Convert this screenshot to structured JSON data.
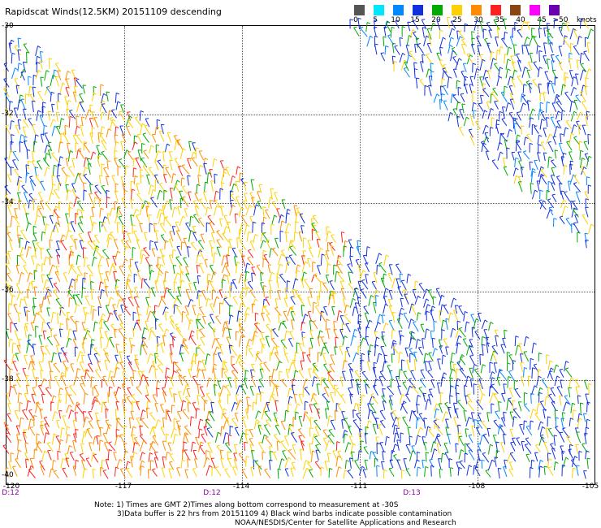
{
  "title": "Rapidscat Winds(12.5KM) 20151109 descending",
  "legend": {
    "unit": "knots",
    "entries": [
      {
        "label": "0",
        "color": "#555555"
      },
      {
        "label": "5",
        "color": "#00e6ff"
      },
      {
        "label": "10",
        "color": "#0088ff"
      },
      {
        "label": "15",
        "color": "#1030e0"
      },
      {
        "label": "20",
        "color": "#00aa00"
      },
      {
        "label": "25",
        "color": "#ffd000"
      },
      {
        "label": "30",
        "color": "#ff8c00"
      },
      {
        "label": "35",
        "color": "#ff2020"
      },
      {
        "label": "40",
        "color": "#8b4513"
      },
      {
        "label": "45",
        "color": "#ff00ff"
      },
      {
        "label": ">50",
        "color": "#6a00b0"
      }
    ]
  },
  "lat_labels": [
    "-30",
    "-32",
    "-34",
    "-36",
    "-38",
    "-40"
  ],
  "lon_labels": [
    "-120",
    "-117",
    "-114",
    "-111",
    "-108",
    "-105"
  ],
  "time_labels": [
    "D:12",
    "D:12",
    "D:13"
  ],
  "notes": {
    "line1": "Note: 1) Times are GMT 2)Times along bottom correspond to measurement at -30S",
    "line2": "3)Data buffer is 22 hrs from 20151109 4) Black wind barbs indicate possible contamination",
    "line3": "NOAA/NESDIS/Center for Satellite Applications and Research"
  }
}
